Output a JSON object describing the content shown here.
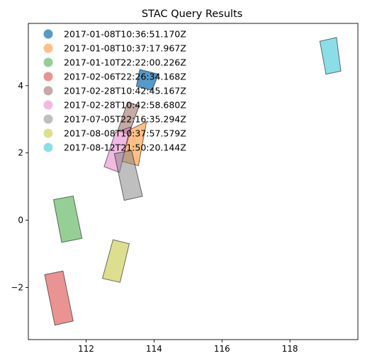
{
  "chart_data": {
    "type": "scatter",
    "title": "STAC Query Results",
    "xlabel": "",
    "ylabel": "",
    "xlim": [
      110.3,
      120.0
    ],
    "ylim": [
      -3.55,
      5.85
    ],
    "xticks": [
      112,
      114,
      116,
      118
    ],
    "xtick_labels": [
      "112",
      "114",
      "116",
      "118"
    ],
    "yticks": [
      -2,
      0,
      2,
      4
    ],
    "ytick_labels": [
      "−2",
      "0",
      "2",
      "4"
    ],
    "grid": false,
    "legend_position": "upper-left",
    "series": [
      {
        "name": "2017-01-08T10:36:51.170Z",
        "color": "#1f77b4",
        "alpha": 0.75,
        "polygon": [
          [
            113.58,
            4.48
          ],
          [
            114.13,
            4.34
          ],
          [
            113.94,
            3.86
          ],
          [
            113.48,
            3.98
          ]
        ]
      },
      {
        "name": "2017-01-08T10:37:17.967Z",
        "color": "#ff7f0e",
        "alpha": 0.5,
        "polygon": [
          [
            113.28,
            2.69
          ],
          [
            113.78,
            2.93
          ],
          [
            113.54,
            1.62
          ],
          [
            113.05,
            1.75
          ]
        ]
      },
      {
        "name": "2017-01-10T22:22:00.226Z",
        "color": "#2ca02c",
        "alpha": 0.5,
        "polygon": [
          [
            111.04,
            0.61
          ],
          [
            111.62,
            0.72
          ],
          [
            111.88,
            -0.54
          ],
          [
            111.28,
            -0.66
          ]
        ]
      },
      {
        "name": "2017-02-06T22:26:34.168Z",
        "color": "#d62728",
        "alpha": 0.5,
        "polygon": [
          [
            110.78,
            -1.62
          ],
          [
            111.32,
            -1.51
          ],
          [
            111.62,
            -3.0
          ],
          [
            111.08,
            -3.12
          ]
        ]
      },
      {
        "name": "2017-02-28T10:42:45.167Z",
        "color": "#8c564b",
        "alpha": 0.5,
        "polygon": [
          [
            113.22,
            3.51
          ],
          [
            113.56,
            3.4
          ],
          [
            113.26,
            2.56
          ],
          [
            112.93,
            2.66
          ]
        ]
      },
      {
        "name": "2017-02-28T10:42:58.680Z",
        "color": "#e377c2",
        "alpha": 0.5,
        "polygon": [
          [
            112.86,
            2.61
          ],
          [
            113.32,
            2.77
          ],
          [
            112.98,
            1.42
          ],
          [
            112.53,
            1.59
          ]
        ]
      },
      {
        "name": "2017-07-05T22:16:35.294Z",
        "color": "#7f7f7f",
        "alpha": 0.5,
        "polygon": [
          [
            112.83,
            1.98
          ],
          [
            113.34,
            2.07
          ],
          [
            113.66,
            0.71
          ],
          [
            113.12,
            0.59
          ]
        ]
      },
      {
        "name": "2017-08-08T10:37:57.579Z",
        "color": "#bcbd22",
        "alpha": 0.5,
        "polygon": [
          [
            112.79,
            -0.58
          ],
          [
            113.27,
            -0.7
          ],
          [
            113.0,
            -1.85
          ],
          [
            112.48,
            -1.73
          ]
        ]
      },
      {
        "name": "2017-08-12T21:50:20.144Z",
        "color": "#17becf",
        "alpha": 0.5,
        "polygon": [
          [
            118.88,
            5.32
          ],
          [
            119.37,
            5.43
          ],
          [
            119.5,
            4.43
          ],
          [
            119.06,
            4.34
          ]
        ]
      }
    ]
  }
}
